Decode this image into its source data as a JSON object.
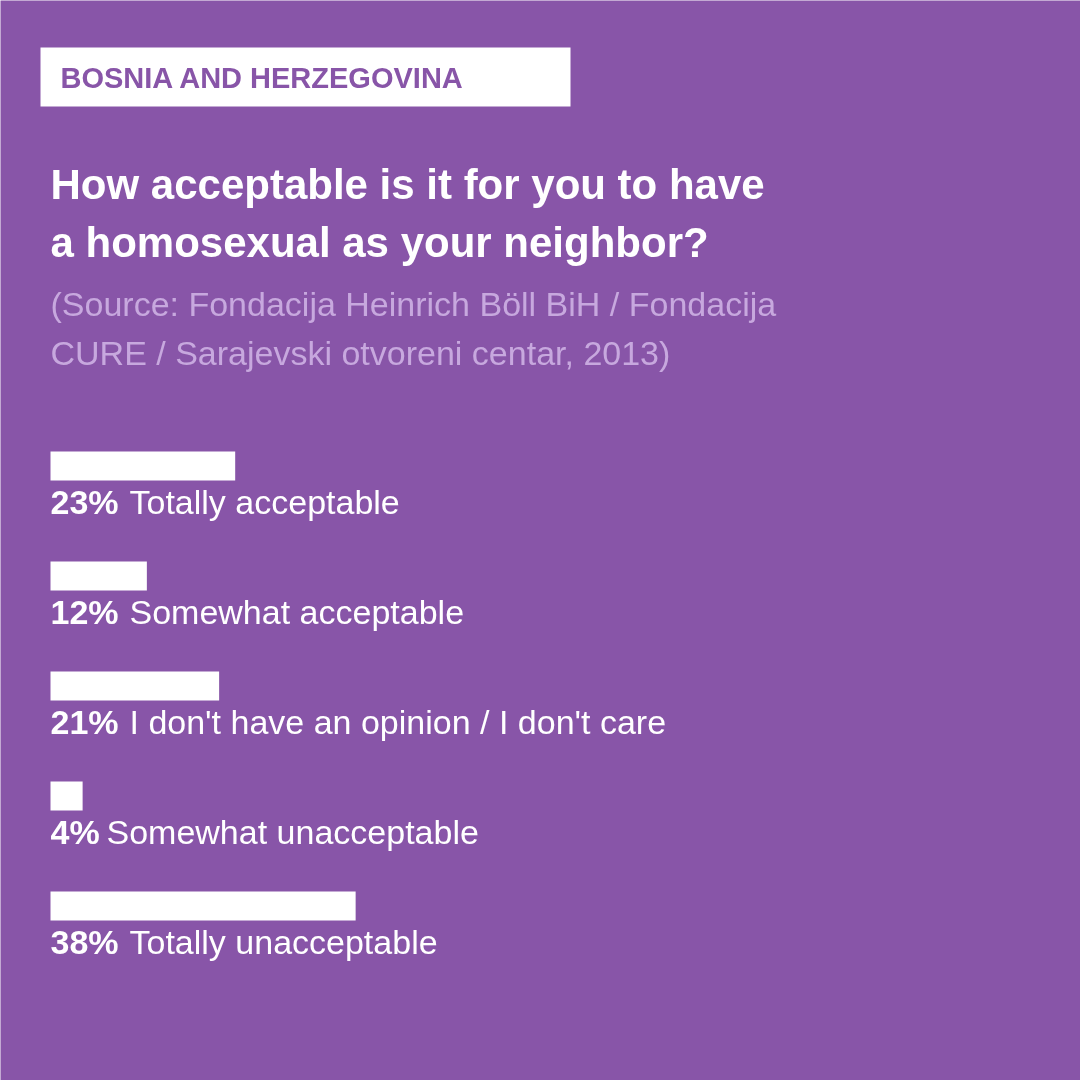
{
  "chart_data": {
    "type": "bar",
    "orientation": "horizontal",
    "title": "How acceptable is it for you to have a homosexual as your neighbor?",
    "annotations": [
      "BOSNIA AND HERZEGOVINA",
      "(Source: Fondacija Heinrich Böll BiH / Fondacija CURE / Sarajevski otvoreni centar, 2013)"
    ],
    "categories": [
      "Totally acceptable",
      "Somewhat acceptable",
      "I don't have an opinion / I don't care",
      "Somewhat unacceptable",
      "Totally unacceptable"
    ],
    "values": [
      23,
      12,
      21,
      4,
      38
    ],
    "value_labels": [
      "23%",
      "12%",
      "21%",
      "4%",
      "38%"
    ],
    "color": "#ffffff"
  }
}
